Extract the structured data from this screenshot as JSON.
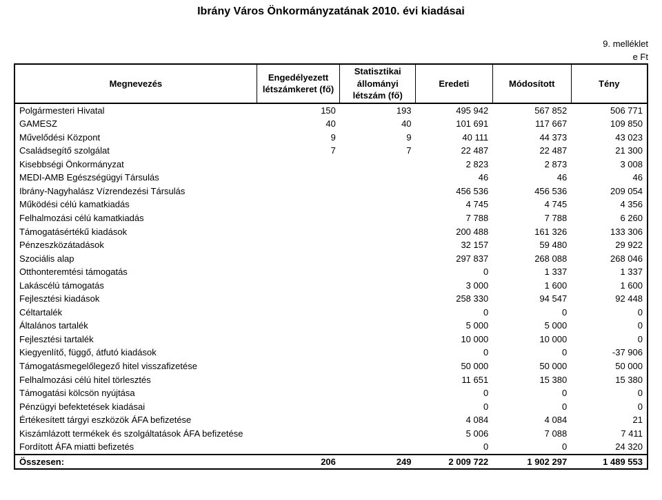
{
  "title": "Ibrány Város Önkormányzatának 2010. évi kiadásai",
  "annotation": "9. melléklet",
  "unit": "e Ft",
  "columns": {
    "name": "Megnevezés",
    "b": "Engedélyezett létszámkeret (fő)",
    "c": "Statisztikai állományi létszám (fő)",
    "d": "Eredeti",
    "e": "Módosított",
    "f": "Tény"
  },
  "rows": [
    {
      "name": "Polgármesteri Hivatal",
      "b": "150",
      "c": "193",
      "d": "495 942",
      "e": "567 852",
      "f": "506 771"
    },
    {
      "name": "GAMESZ",
      "b": "40",
      "c": "40",
      "d": "101 691",
      "e": "117 667",
      "f": "109 850"
    },
    {
      "name": "Művelődési Központ",
      "b": "9",
      "c": "9",
      "d": "40 111",
      "e": "44 373",
      "f": "43 023"
    },
    {
      "name": "Családsegítő szolgálat",
      "b": "7",
      "c": "7",
      "d": "22 487",
      "e": "22 487",
      "f": "21 300"
    },
    {
      "name": "Kisebbségi Önkormányzat",
      "b": "",
      "c": "",
      "d": "2 823",
      "e": "2 873",
      "f": "3 008"
    },
    {
      "name": "MEDI-AMB Egészségügyi Társulás",
      "b": "",
      "c": "",
      "d": "46",
      "e": "46",
      "f": "46"
    },
    {
      "name": "Ibrány-Nagyhalász Vízrendezési Társulás",
      "b": "",
      "c": "",
      "d": "456 536",
      "e": "456 536",
      "f": "209 054"
    },
    {
      "name": "Működési célú kamatkiadás",
      "b": "",
      "c": "",
      "d": "4 745",
      "e": "4 745",
      "f": "4 356"
    },
    {
      "name": "Felhalmozási célú kamatkiadás",
      "b": "",
      "c": "",
      "d": "7 788",
      "e": "7 788",
      "f": "6 260"
    },
    {
      "name": "Támogatásértékű kiadások",
      "b": "",
      "c": "",
      "d": "200 488",
      "e": "161 326",
      "f": "133 306"
    },
    {
      "name": "Pénzeszközátadások",
      "b": "",
      "c": "",
      "d": "32 157",
      "e": "59 480",
      "f": "29 922"
    },
    {
      "name": "Szociális alap",
      "b": "",
      "c": "",
      "d": "297 837",
      "e": "268 088",
      "f": "268 046"
    },
    {
      "name": "Otthonteremtési támogatás",
      "b": "",
      "c": "",
      "d": "0",
      "e": "1 337",
      "f": "1 337"
    },
    {
      "name": "Lakáscélú támogatás",
      "b": "",
      "c": "",
      "d": "3 000",
      "e": "1 600",
      "f": "1 600"
    },
    {
      "name": "Fejlesztési kiadások",
      "b": "",
      "c": "",
      "d": "258 330",
      "e": "94 547",
      "f": "92 448"
    },
    {
      "name": "Céltartalék",
      "b": "",
      "c": "",
      "d": "0",
      "e": "0",
      "f": "0"
    },
    {
      "name": "Általános tartalék",
      "b": "",
      "c": "",
      "d": "5 000",
      "e": "5 000",
      "f": "0"
    },
    {
      "name": "Fejlesztési tartalék",
      "b": "",
      "c": "",
      "d": "10 000",
      "e": "10 000",
      "f": "0"
    },
    {
      "name": "Kiegyenlítő, függő, átfutó kiadások",
      "b": "",
      "c": "",
      "d": "0",
      "e": "0",
      "f": "-37 906"
    },
    {
      "name": "Támogatásmegelőlegező hitel visszafizetése",
      "b": "",
      "c": "",
      "d": "50 000",
      "e": "50 000",
      "f": "50 000"
    },
    {
      "name": "Felhalmozási célú hitel törlesztés",
      "b": "",
      "c": "",
      "d": "11 651",
      "e": "15 380",
      "f": "15 380"
    },
    {
      "name": "Támogatási kölcsön nyújtása",
      "b": "",
      "c": "",
      "d": "0",
      "e": "0",
      "f": "0"
    },
    {
      "name": "Pénzügyi befektetések kiadásai",
      "b": "",
      "c": "",
      "d": "0",
      "e": "0",
      "f": "0"
    },
    {
      "name": "Értékesített tárgyi eszközök ÁFA befizetése",
      "b": "",
      "c": "",
      "d": "4 084",
      "e": "4 084",
      "f": "21"
    },
    {
      "name": "Kiszámlázott termékek és szolgáltatások ÁFA befizetése",
      "b": "",
      "c": "",
      "d": "5 006",
      "e": "7 088",
      "f": "7 411"
    },
    {
      "name": "Fordított ÁFA miatti befizetés",
      "b": "",
      "c": "",
      "d": "0",
      "e": "0",
      "f": "24 320"
    }
  ],
  "total": {
    "name": "Összesen:",
    "b": "206",
    "c": "249",
    "d": "2 009 722",
    "e": "1 902 297",
    "f": "1 489 553"
  }
}
